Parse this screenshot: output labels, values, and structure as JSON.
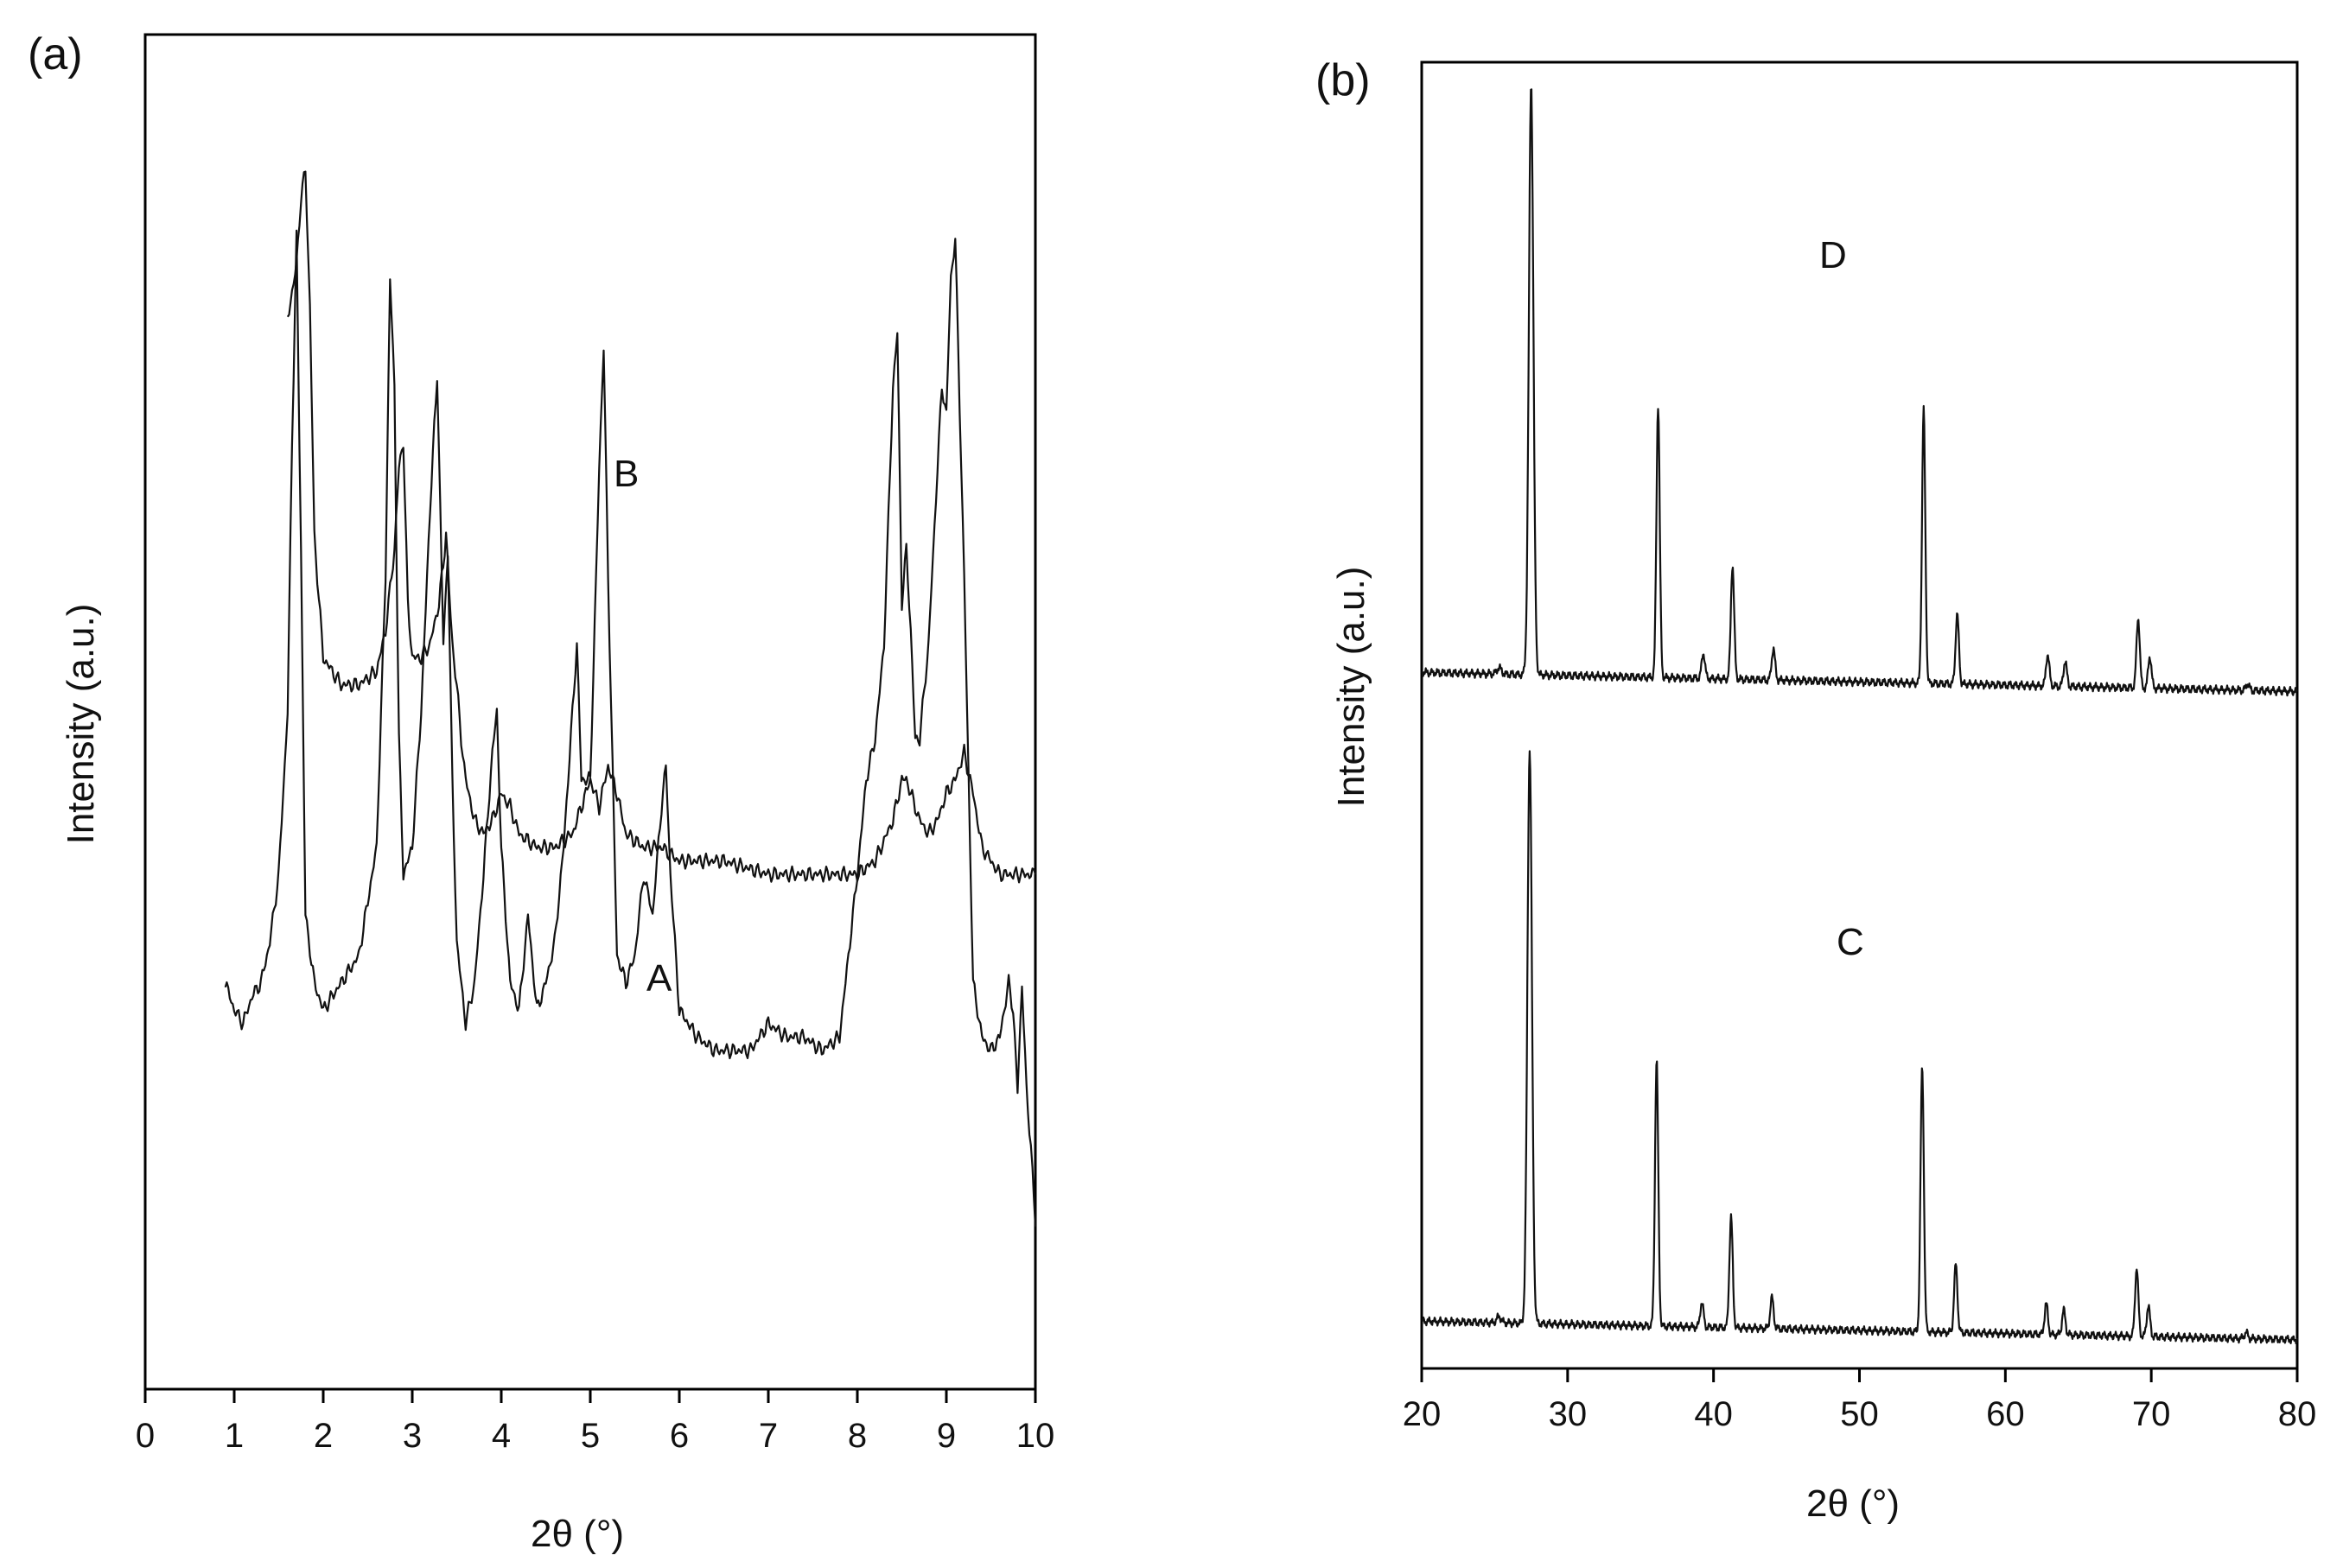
{
  "chart_data": [
    {
      "panel_label": "(a)",
      "type": "line",
      "xlabel": "2θ (°)",
      "ylabel": "Intensity (a.u.)",
      "xlim": [
        0,
        10
      ],
      "x_ticks": [
        "0",
        "1",
        "2",
        "3",
        "4",
        "5",
        "6",
        "7",
        "8",
        "9",
        "10"
      ],
      "y_ticks_shown": false,
      "series": [
        {
          "name": "A",
          "label": "A",
          "x": [
            0.9,
            1.0,
            1.1,
            1.2,
            1.3,
            1.4,
            1.5,
            1.6,
            1.65,
            1.7,
            1.75,
            1.8,
            1.9,
            2.0,
            2.2,
            2.4,
            2.6,
            2.7,
            2.75,
            2.8,
            2.85,
            2.9,
            3.0,
            3.1,
            3.2,
            3.28,
            3.35,
            3.4,
            3.45,
            3.5,
            3.6,
            3.7,
            3.8,
            3.9,
            3.95,
            4.0,
            4.1,
            4.2,
            4.3,
            4.4,
            4.5,
            4.6,
            4.7,
            4.8,
            4.85,
            4.9,
            5.0,
            5.1,
            5.15,
            5.2,
            5.3,
            5.4,
            5.5,
            5.6,
            5.7,
            5.8,
            5.85,
            5.9,
            6.0,
            6.2,
            6.4,
            6.6,
            6.8,
            7.0,
            7.2,
            7.4,
            7.6,
            7.8,
            8.0,
            8.1,
            8.2,
            8.3,
            8.4,
            8.45,
            8.5,
            8.55,
            8.6,
            8.65,
            8.7,
            8.8,
            8.9,
            8.95,
            9.0,
            9.05,
            9.1,
            9.2,
            9.3,
            9.4,
            9.5,
            9.6,
            9.7,
            9.75,
            9.8,
            9.85,
            9.9,
            9.95,
            10.0
          ],
          "values": [
            30,
            28,
            27,
            29,
            30,
            33,
            38,
            50,
            70,
            85,
            62,
            35,
            30,
            28,
            30,
            32,
            40,
            60,
            82,
            74,
            48,
            38,
            40,
            50,
            65,
            75,
            55,
            62,
            45,
            33,
            27,
            30,
            38,
            47,
            50,
            40,
            30,
            28,
            35,
            28,
            30,
            33,
            40,
            50,
            55,
            45,
            45,
            68,
            77,
            60,
            32,
            30,
            32,
            38,
            35,
            43,
            46,
            38,
            28,
            26,
            25,
            25,
            25,
            27,
            26,
            26,
            25,
            26,
            38,
            45,
            48,
            55,
            74,
            78,
            58,
            62,
            56,
            48,
            48,
            55,
            68,
            74,
            72,
            82,
            85,
            60,
            30,
            26,
            25,
            26,
            30,
            28,
            22,
            30,
            22,
            18,
            12
          ]
        },
        {
          "name": "B",
          "label": "B",
          "x": [
            1.6,
            1.7,
            1.75,
            1.8,
            1.85,
            1.9,
            2.0,
            2.2,
            2.4,
            2.6,
            2.7,
            2.8,
            2.85,
            2.9,
            2.95,
            3.0,
            3.1,
            3.2,
            3.3,
            3.38,
            3.45,
            3.5,
            3.55,
            3.6,
            3.7,
            3.8,
            3.9,
            4.0,
            4.1,
            4.2,
            4.4,
            4.6,
            4.8,
            4.9,
            5.0,
            5.1,
            5.2,
            5.3,
            5.4,
            5.6,
            5.8,
            6.0,
            6.5,
            7.0,
            7.5,
            8.0,
            8.2,
            8.4,
            8.5,
            8.55,
            8.6,
            8.7,
            8.8,
            8.9,
            9.0,
            9.1,
            9.2,
            9.3,
            9.4,
            9.5,
            9.6,
            9.8,
            10.0
          ],
          "values": [
            79,
            83,
            88,
            90,
            80,
            63,
            54,
            52,
            52,
            53,
            56,
            62,
            68,
            70,
            58,
            54,
            54,
            55,
            58,
            63,
            55,
            52,
            48,
            45,
            42,
            41,
            42,
            44,
            43,
            41,
            40,
            40,
            41,
            43,
            45,
            43,
            46,
            44,
            41,
            40,
            40,
            39,
            39,
            38,
            38,
            38,
            39,
            42,
            45,
            45,
            44,
            42,
            41,
            42,
            44,
            45,
            47,
            44,
            40,
            39,
            38,
            38,
            38
          ]
        }
      ]
    },
    {
      "panel_label": "(b)",
      "type": "line",
      "xlabel": "2θ (°)",
      "ylabel": "Intensity (a.u.)",
      "xlim": [
        20,
        80
      ],
      "x_ticks": [
        "20",
        "30",
        "40",
        "50",
        "60",
        "70",
        "80"
      ],
      "y_ticks_shown": false,
      "series": [
        {
          "name": "C",
          "label": "C",
          "baseline": 0.05,
          "peaks": [
            {
              "pos": 25.3,
              "h": 0.01
            },
            {
              "pos": 27.4,
              "h": 0.93
            },
            {
              "pos": 36.1,
              "h": 0.43
            },
            {
              "pos": 39.2,
              "h": 0.04
            },
            {
              "pos": 41.2,
              "h": 0.18
            },
            {
              "pos": 44.0,
              "h": 0.05
            },
            {
              "pos": 54.3,
              "h": 0.43
            },
            {
              "pos": 56.6,
              "h": 0.11
            },
            {
              "pos": 62.8,
              "h": 0.05
            },
            {
              "pos": 64.0,
              "h": 0.04
            },
            {
              "pos": 69.0,
              "h": 0.11
            },
            {
              "pos": 69.8,
              "h": 0.05
            },
            {
              "pos": 76.5,
              "h": 0.01
            }
          ]
        },
        {
          "name": "D",
          "label": "D",
          "baseline": 0.05,
          "peaks": [
            {
              "pos": 25.3,
              "h": 0.01
            },
            {
              "pos": 27.5,
              "h": 0.93
            },
            {
              "pos": 36.2,
              "h": 0.43
            },
            {
              "pos": 39.3,
              "h": 0.04
            },
            {
              "pos": 41.3,
              "h": 0.18
            },
            {
              "pos": 44.1,
              "h": 0.05
            },
            {
              "pos": 54.4,
              "h": 0.43
            },
            {
              "pos": 56.7,
              "h": 0.11
            },
            {
              "pos": 62.9,
              "h": 0.05
            },
            {
              "pos": 64.1,
              "h": 0.04
            },
            {
              "pos": 69.1,
              "h": 0.11
            },
            {
              "pos": 69.9,
              "h": 0.05
            },
            {
              "pos": 76.6,
              "h": 0.01
            }
          ]
        }
      ]
    }
  ]
}
